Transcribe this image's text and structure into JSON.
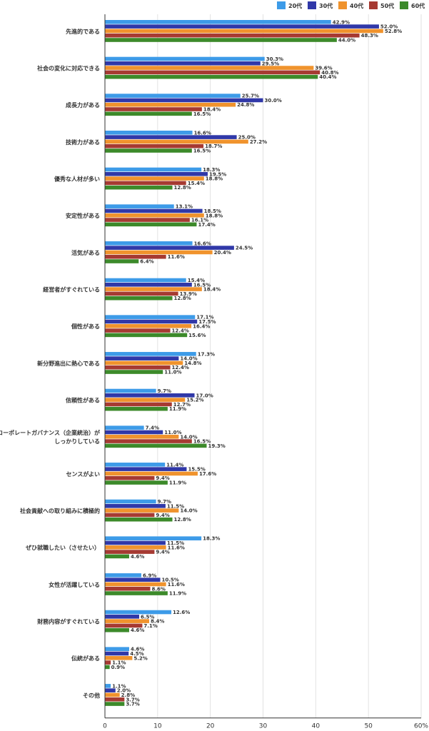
{
  "chart_data": {
    "type": "bar",
    "orientation": "horizontal",
    "title": "",
    "xlabel": "",
    "ylabel": "",
    "xlim": [
      0,
      60
    ],
    "x_ticks": [
      "0",
      "10",
      "20",
      "30",
      "40",
      "50",
      "60%"
    ],
    "grid": true,
    "legend_position": "top-right",
    "categories": [
      [
        "先進的である"
      ],
      [
        "社会の変化に対応できる"
      ],
      [
        "成長力がある"
      ],
      [
        "技術力がある"
      ],
      [
        "優秀な人材が多い"
      ],
      [
        "安定性がある"
      ],
      [
        "活気がある"
      ],
      [
        "経営者がすぐれている"
      ],
      [
        "個性がある"
      ],
      [
        "新分野進出に熱心である"
      ],
      [
        "信頼性がある"
      ],
      [
        "コーポレートガバナンス（企業統治）が",
        "しっかりしている"
      ],
      [
        "センスがよい"
      ],
      [
        "社会貢献への取り組みに積極的"
      ],
      [
        "ぜひ就職したい（させたい）"
      ],
      [
        "女性が活躍している"
      ],
      [
        "財務内容がすぐれている"
      ],
      [
        "伝統がある"
      ],
      [
        "その他"
      ]
    ],
    "series": [
      {
        "name": "20代",
        "color": "#3d9be8",
        "values": [
          42.9,
          30.3,
          25.7,
          16.6,
          18.3,
          13.1,
          16.6,
          15.4,
          17.1,
          17.3,
          9.7,
          7.4,
          11.4,
          9.7,
          18.3,
          6.9,
          12.6,
          4.6,
          1.1
        ]
      },
      {
        "name": "30代",
        "color": "#3038a8",
        "values": [
          52.0,
          29.5,
          30.0,
          25.0,
          19.5,
          18.5,
          24.5,
          16.5,
          17.5,
          14.0,
          17.0,
          11.0,
          15.5,
          11.5,
          11.5,
          10.5,
          6.5,
          4.5,
          2.0
        ]
      },
      {
        "name": "40代",
        "color": "#f0932d",
        "values": [
          52.8,
          39.6,
          24.8,
          27.2,
          18.8,
          18.8,
          20.4,
          18.4,
          16.4,
          14.8,
          15.2,
          14.0,
          17.6,
          14.0,
          11.6,
          11.6,
          8.4,
          5.2,
          2.8
        ]
      },
      {
        "name": "50代",
        "color": "#a63a32",
        "values": [
          48.3,
          40.8,
          18.4,
          18.7,
          15.4,
          16.1,
          11.6,
          13.9,
          12.4,
          12.4,
          12.7,
          16.5,
          9.4,
          9.4,
          9.4,
          8.6,
          7.1,
          1.1,
          3.7
        ]
      },
      {
        "name": "60代",
        "color": "#3c8a2a",
        "values": [
          44.0,
          40.4,
          16.5,
          16.5,
          12.8,
          17.4,
          6.4,
          12.8,
          15.6,
          11.0,
          11.9,
          19.3,
          11.9,
          12.8,
          4.6,
          11.9,
          4.6,
          0.9,
          3.7
        ]
      }
    ]
  }
}
